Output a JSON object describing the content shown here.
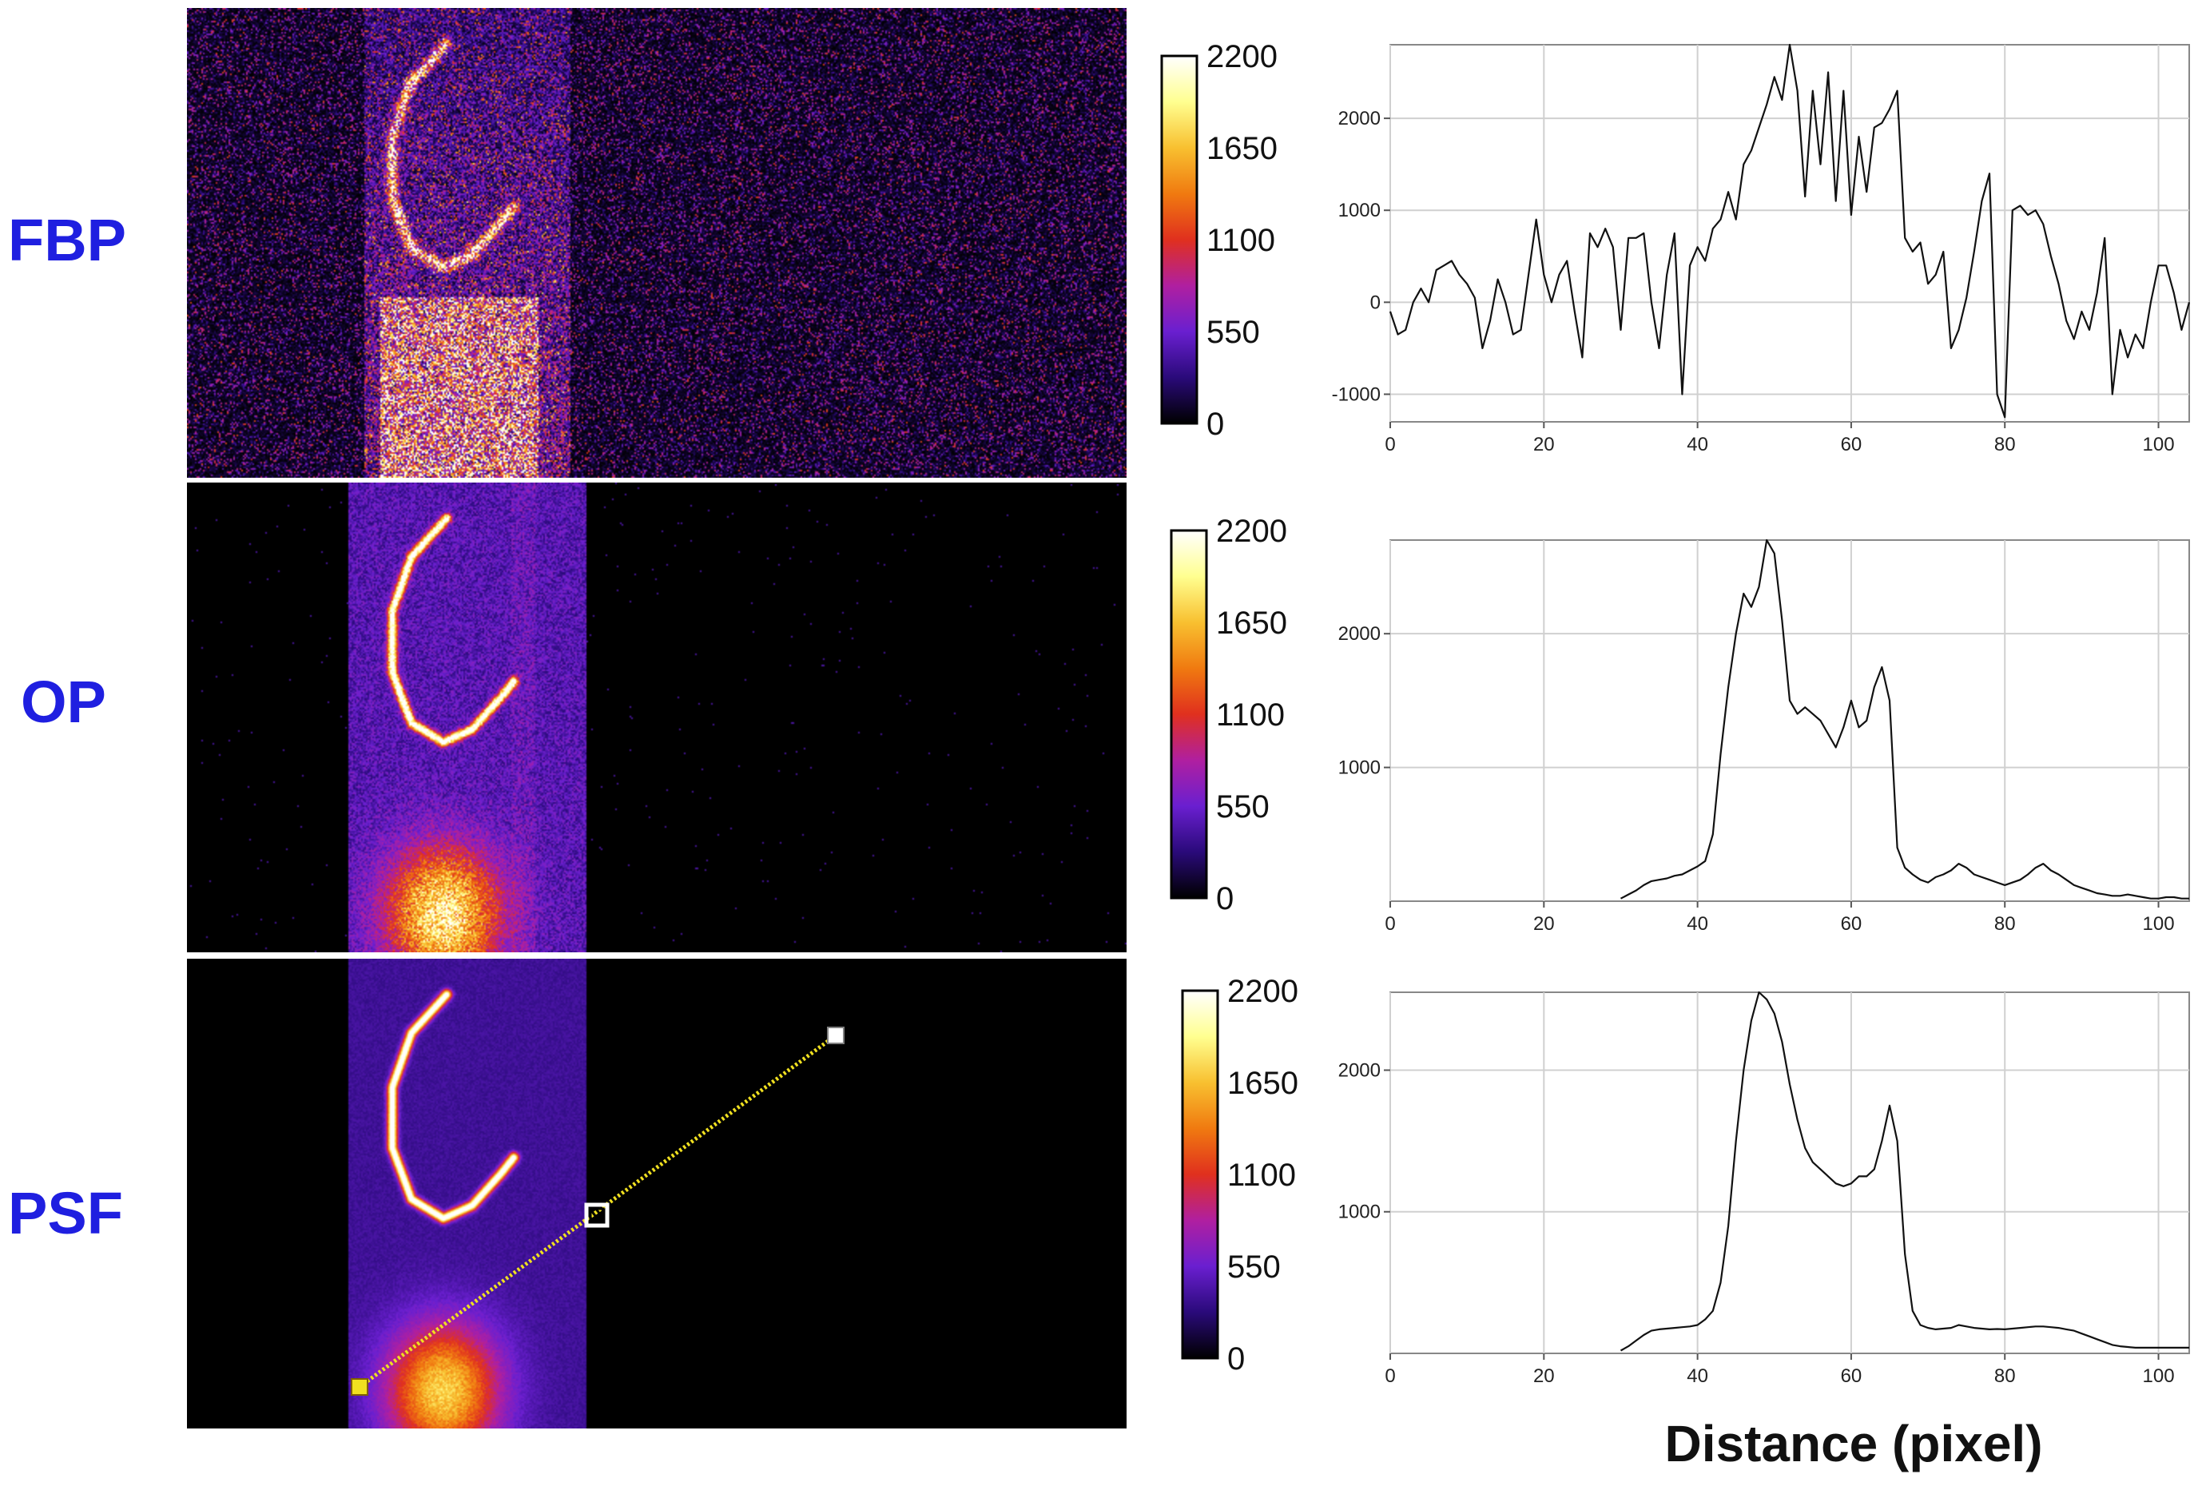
{
  "figure": {
    "row_labels": [
      "FBP",
      "OP",
      "PSF"
    ],
    "xlabel": "Distance (pixel)",
    "colorbar": {
      "ticks": [
        "2200",
        "1650",
        "1100",
        "550",
        "0"
      ],
      "colormap": [
        "#000000",
        "#2a0a7a",
        "#6a1fd0",
        "#b01fa0",
        "#e0301e",
        "#f07a10",
        "#f8c030",
        "#ffff90",
        "#ffffff"
      ]
    },
    "profile_line_color": "#f0e020"
  },
  "chart_data": [
    {
      "type": "line",
      "row": "FBP",
      "xlim": [
        0,
        104
      ],
      "ylim": [
        -1300,
        2800
      ],
      "xticks": [
        "0",
        "20",
        "40",
        "60",
        "80",
        "100"
      ],
      "xtick_values": [
        0,
        20,
        40,
        60,
        80,
        100
      ],
      "yticks": [
        "2000",
        "1000",
        "0",
        "-1000"
      ],
      "ytick_values": [
        2000,
        1000,
        0,
        -1000
      ],
      "x": [
        0,
        1,
        2,
        3,
        4,
        5,
        6,
        7,
        8,
        9,
        10,
        11,
        12,
        13,
        14,
        15,
        16,
        17,
        18,
        19,
        20,
        21,
        22,
        23,
        24,
        25,
        26,
        27,
        28,
        29,
        30,
        31,
        32,
        33,
        34,
        35,
        36,
        37,
        38,
        39,
        40,
        41,
        42,
        43,
        44,
        45,
        46,
        47,
        48,
        49,
        50,
        51,
        52,
        53,
        54,
        55,
        56,
        57,
        58,
        59,
        60,
        61,
        62,
        63,
        64,
        65,
        66,
        67,
        68,
        69,
        70,
        71,
        72,
        73,
        74,
        75,
        76,
        77,
        78,
        79,
        80,
        81,
        82,
        83,
        84,
        85,
        86,
        87,
        88,
        89,
        90,
        91,
        92,
        93,
        94,
        95,
        96,
        97,
        98,
        99,
        100,
        101,
        102,
        103,
        104
      ],
      "values": [
        -100,
        -350,
        -300,
        0,
        150,
        0,
        350,
        400,
        450,
        300,
        200,
        50,
        -500,
        -200,
        250,
        0,
        -350,
        -300,
        300,
        900,
        300,
        0,
        300,
        450,
        -100,
        -600,
        750,
        600,
        800,
        600,
        -300,
        700,
        700,
        750,
        0,
        -500,
        300,
        750,
        -1000,
        400,
        600,
        450,
        800,
        900,
        1200,
        900,
        1500,
        1650,
        1900,
        2150,
        2450,
        2200,
        2800,
        2300,
        1150,
        2300,
        1500,
        2500,
        1100,
        2300,
        950,
        1800,
        1200,
        1900,
        1950,
        2100,
        2300,
        700,
        550,
        650,
        200,
        300,
        550,
        -500,
        -300,
        50,
        550,
        1100,
        1400,
        -1000,
        -1250,
        1000,
        1050,
        950,
        1000,
        850,
        500,
        200,
        -200,
        -400,
        -100,
        -300,
        100,
        700,
        -1000,
        -300,
        -600,
        -350,
        -500,
        0,
        400,
        400,
        100,
        -300,
        0
      ]
    },
    {
      "type": "line",
      "row": "OP",
      "xlim": [
        0,
        104
      ],
      "ylim": [
        0,
        2700
      ],
      "xticks": [
        "0",
        "20",
        "40",
        "60",
        "80",
        "100"
      ],
      "xtick_values": [
        0,
        20,
        40,
        60,
        80,
        100
      ],
      "yticks": [
        "2000",
        "1000"
      ],
      "ytick_values": [
        2000,
        1000
      ],
      "x": [
        30,
        31,
        32,
        33,
        34,
        35,
        36,
        37,
        38,
        39,
        40,
        41,
        42,
        43,
        44,
        45,
        46,
        47,
        48,
        49,
        50,
        51,
        52,
        53,
        54,
        55,
        56,
        57,
        58,
        59,
        60,
        61,
        62,
        63,
        64,
        65,
        66,
        67,
        68,
        69,
        70,
        71,
        72,
        73,
        74,
        75,
        76,
        77,
        78,
        79,
        80,
        81,
        82,
        83,
        84,
        85,
        86,
        87,
        88,
        89,
        90,
        91,
        92,
        93,
        94,
        95,
        96,
        97,
        98,
        99,
        100,
        101,
        102,
        103,
        104
      ],
      "values": [
        20,
        50,
        80,
        120,
        150,
        160,
        170,
        190,
        200,
        230,
        260,
        300,
        500,
        1100,
        1600,
        2000,
        2300,
        2200,
        2350,
        2700,
        2600,
        2100,
        1500,
        1400,
        1450,
        1400,
        1350,
        1250,
        1150,
        1300,
        1500,
        1300,
        1350,
        1600,
        1750,
        1500,
        400,
        250,
        200,
        160,
        140,
        180,
        200,
        230,
        280,
        250,
        200,
        180,
        160,
        140,
        120,
        140,
        160,
        200,
        250,
        280,
        230,
        200,
        160,
        120,
        100,
        80,
        60,
        50,
        40,
        40,
        50,
        40,
        30,
        20,
        20,
        30,
        30,
        20,
        20
      ]
    },
    {
      "type": "line",
      "row": "PSF",
      "xlim": [
        0,
        104
      ],
      "ylim": [
        0,
        2550
      ],
      "xticks": [
        "0",
        "20",
        "40",
        "60",
        "80",
        "100"
      ],
      "xtick_values": [
        0,
        20,
        40,
        60,
        80,
        100
      ],
      "yticks": [
        "2000",
        "1000"
      ],
      "ytick_values": [
        2000,
        1000
      ],
      "x": [
        30,
        31,
        32,
        33,
        34,
        35,
        36,
        37,
        38,
        39,
        40,
        41,
        42,
        43,
        44,
        45,
        46,
        47,
        48,
        49,
        50,
        51,
        52,
        53,
        54,
        55,
        56,
        57,
        58,
        59,
        60,
        61,
        62,
        63,
        64,
        65,
        66,
        67,
        68,
        69,
        70,
        71,
        72,
        73,
        74,
        75,
        76,
        77,
        78,
        79,
        80,
        81,
        82,
        83,
        84,
        85,
        86,
        87,
        88,
        89,
        90,
        91,
        92,
        93,
        94,
        95,
        96,
        97,
        98,
        99,
        100,
        101,
        102,
        103,
        104
      ],
      "values": [
        20,
        50,
        90,
        130,
        160,
        170,
        175,
        180,
        185,
        190,
        200,
        240,
        300,
        500,
        900,
        1500,
        2000,
        2350,
        2550,
        2500,
        2400,
        2200,
        1900,
        1650,
        1450,
        1350,
        1300,
        1250,
        1200,
        1180,
        1200,
        1250,
        1250,
        1300,
        1500,
        1750,
        1500,
        700,
        300,
        200,
        180,
        170,
        175,
        180,
        200,
        190,
        180,
        175,
        170,
        172,
        170,
        175,
        180,
        185,
        190,
        190,
        185,
        180,
        170,
        160,
        140,
        120,
        100,
        80,
        60,
        50,
        45,
        40,
        40,
        40,
        40,
        40,
        40,
        40,
        40
      ]
    }
  ]
}
